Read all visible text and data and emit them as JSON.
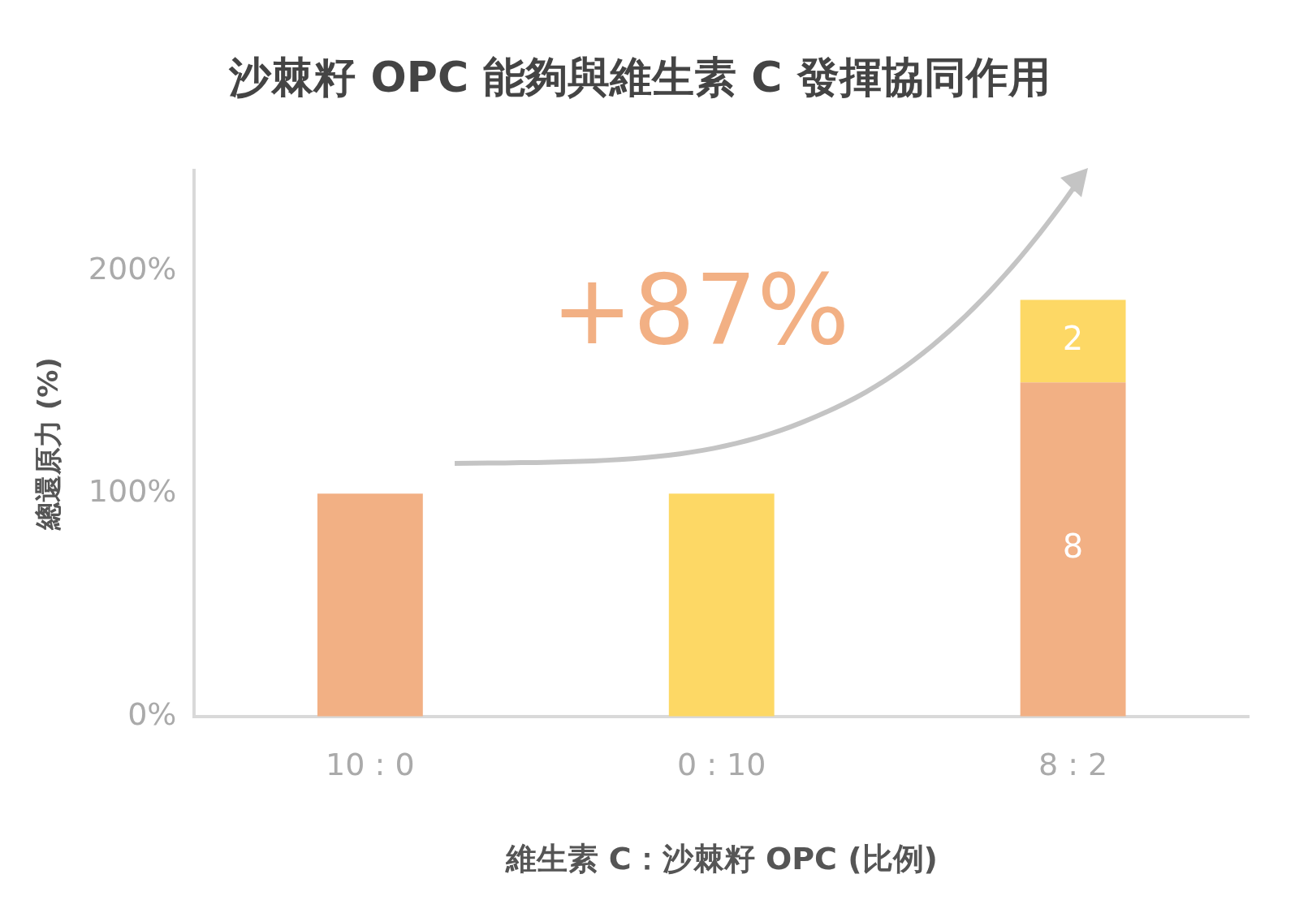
{
  "chart_data": {
    "type": "bar",
    "title": "沙棘籽 OPC 能夠與維生素 C 發揮協同作用",
    "xlabel": "維生素 C：沙棘籽 OPC (比例)",
    "ylabel": "總還原力 (%)",
    "categories": [
      "10 : 0",
      "0 : 10",
      "8 : 2"
    ],
    "stacked": true,
    "series": [
      {
        "color": "#f2b084",
        "values": [
          100,
          null,
          150
        ]
      },
      {
        "color": "#fdd865",
        "values": [
          null,
          100,
          37
        ]
      }
    ],
    "ylim": [
      0,
      245
    ],
    "yticks": [
      {
        "value": 0,
        "label": "0%"
      },
      {
        "value": 100,
        "label": "100%"
      },
      {
        "value": 200,
        "label": "200%"
      }
    ],
    "annotations": [
      "+87%",
      "8",
      "2"
    ],
    "grid": false,
    "legend": false
  }
}
